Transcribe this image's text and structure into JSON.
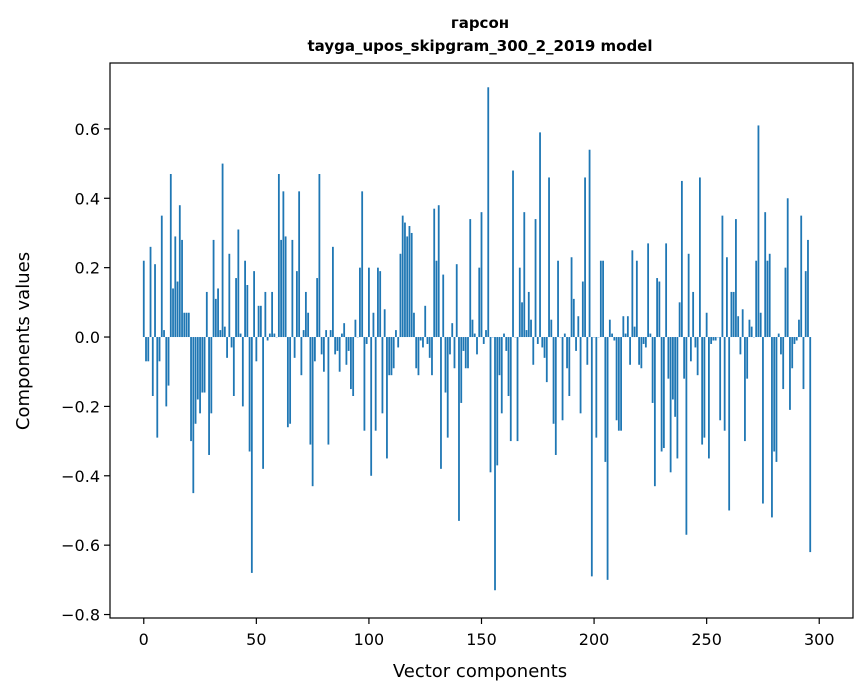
{
  "chart_data": {
    "type": "bar",
    "title": "гарсон",
    "subtitle": "tayga_upos_skipgram_300_2_2019 model",
    "xlabel": "Vector components",
    "ylabel": "Components values",
    "xlim": [
      -15,
      315
    ],
    "ylim": [
      -0.81,
      0.79
    ],
    "xticks": [
      0,
      50,
      100,
      150,
      200,
      250,
      300
    ],
    "yticks": [
      -0.8,
      -0.6,
      -0.4,
      -0.2,
      0.0,
      0.2,
      0.4,
      0.6
    ],
    "bar_color": "#1f77b4",
    "grid": false,
    "values": [
      0.22,
      -0.07,
      -0.07,
      0.26,
      -0.17,
      0.21,
      -0.29,
      -0.07,
      0.35,
      0.02,
      -0.2,
      -0.14,
      0.47,
      0.14,
      0.29,
      0.16,
      0.38,
      0.28,
      0.07,
      0.07,
      0.07,
      -0.3,
      -0.45,
      -0.25,
      -0.18,
      -0.22,
      -0.16,
      -0.16,
      0.13,
      -0.34,
      -0.22,
      0.28,
      0.11,
      0.14,
      0.02,
      0.5,
      0.03,
      -0.06,
      0.24,
      -0.03,
      -0.17,
      0.17,
      0.31,
      0.01,
      -0.2,
      0.22,
      0.15,
      -0.33,
      -0.68,
      0.19,
      -0.07,
      0.09,
      0.09,
      -0.38,
      0.13,
      -0.01,
      0.01,
      0.13,
      0.01,
      0.0,
      0.47,
      0.28,
      0.42,
      0.29,
      -0.26,
      -0.25,
      0.28,
      -0.06,
      0.19,
      0.42,
      -0.11,
      0.02,
      0.13,
      0.07,
      -0.31,
      -0.43,
      -0.07,
      0.17,
      0.47,
      -0.05,
      -0.1,
      0.02,
      -0.31,
      0.02,
      0.26,
      -0.05,
      -0.04,
      -0.1,
      0.01,
      0.04,
      -0.08,
      -0.04,
      -0.15,
      -0.17,
      0.05,
      0.0,
      0.2,
      0.42,
      -0.27,
      -0.02,
      0.2,
      -0.4,
      0.07,
      -0.27,
      0.2,
      0.19,
      -0.22,
      0.08,
      -0.35,
      -0.11,
      -0.11,
      -0.09,
      0.02,
      -0.03,
      0.24,
      0.35,
      0.33,
      0.29,
      0.32,
      0.3,
      0.07,
      -0.09,
      -0.11,
      -0.01,
      -0.03,
      0.09,
      -0.02,
      -0.06,
      -0.11,
      0.37,
      0.22,
      0.38,
      -0.38,
      0.18,
      -0.16,
      -0.29,
      -0.05,
      0.04,
      -0.09,
      0.21,
      -0.53,
      -0.19,
      -0.04,
      -0.09,
      -0.09,
      0.34,
      0.05,
      0.01,
      -0.05,
      0.2,
      0.36,
      -0.02,
      0.02,
      0.72,
      -0.39,
      0.0,
      -0.73,
      -0.37,
      -0.11,
      -0.22,
      0.01,
      -0.04,
      -0.17,
      -0.3,
      0.48,
      0.0,
      -0.3,
      0.2,
      0.1,
      0.36,
      0.02,
      0.13,
      0.05,
      -0.08,
      0.34,
      -0.02,
      0.59,
      -0.03,
      -0.06,
      -0.13,
      0.46,
      0.05,
      -0.25,
      -0.34,
      0.22,
      0.0,
      -0.24,
      0.01,
      -0.09,
      -0.17,
      0.23,
      0.11,
      -0.04,
      0.06,
      -0.22,
      0.16,
      0.46,
      -0.08,
      0.54,
      -0.69,
      0.0,
      -0.29,
      0.0,
      0.22,
      0.22,
      -0.36,
      -0.7,
      0.05,
      0.01,
      -0.01,
      -0.24,
      -0.27,
      -0.27,
      0.06,
      0.01,
      0.06,
      -0.08,
      0.25,
      0.03,
      0.22,
      -0.08,
      -0.09,
      -0.02,
      -0.03,
      0.27,
      0.01,
      -0.19,
      -0.43,
      0.17,
      0.16,
      -0.33,
      -0.32,
      0.27,
      -0.12,
      -0.39,
      -0.18,
      -0.23,
      -0.35,
      0.1,
      0.45,
      -0.12,
      -0.57,
      0.24,
      -0.07,
      0.13,
      -0.03,
      -0.11,
      0.46,
      -0.31,
      -0.29,
      0.07,
      -0.35,
      -0.02,
      -0.01,
      -0.01,
      0.0,
      -0.24,
      0.35,
      -0.27,
      0.23,
      -0.5,
      0.13,
      0.13,
      0.34,
      0.06,
      -0.05,
      0.08,
      -0.3,
      -0.12,
      0.05,
      0.03,
      0.0,
      0.22,
      0.61,
      0.07,
      -0.48,
      0.36,
      0.22,
      0.24,
      -0.52,
      -0.33,
      -0.36,
      0.01,
      -0.05,
      -0.15,
      0.2,
      0.4,
      -0.21,
      -0.09,
      -0.02,
      -0.01,
      0.05,
      0.35,
      -0.15,
      0.19,
      0.28,
      -0.62
    ]
  }
}
